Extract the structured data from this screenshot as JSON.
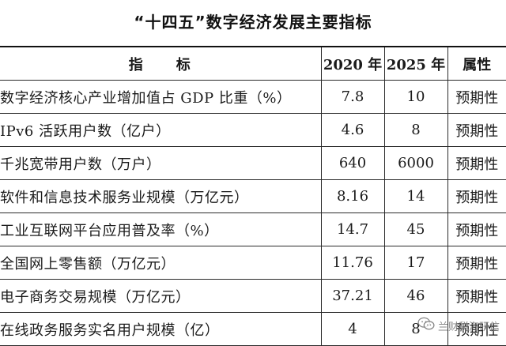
{
  "title": "“十四五”数字经济发展主要指标",
  "table": {
    "headers": {
      "indicator": "指　　标",
      "y2020": "2020 年",
      "y2025": "2025 年",
      "attribute": "属性"
    },
    "rows": [
      {
        "indicator": "数字经济核心产业增加值占 GDP 比重（%）",
        "y2020": "7.8",
        "y2025": "10",
        "attribute": "预期性"
      },
      {
        "indicator": "IPv6 活跃用户数（亿户）",
        "y2020": "4.6",
        "y2025": "8",
        "attribute": "预期性"
      },
      {
        "indicator": "千兆宽带用户数（万户）",
        "y2020": "640",
        "y2025": "6000",
        "attribute": "预期性"
      },
      {
        "indicator": "软件和信息技术服务业规模（万亿元）",
        "y2020": "8.16",
        "y2025": "14",
        "attribute": "预期性"
      },
      {
        "indicator": "工业互联网平台应用普及率（%）",
        "y2020": "14.7",
        "y2025": "45",
        "attribute": "预期性"
      },
      {
        "indicator": "全国网上零售额（万亿元）",
        "y2020": "11.76",
        "y2025": "17",
        "attribute": "预期性"
      },
      {
        "indicator": "电子商务交易规模（万亿元）",
        "y2020": "37.21",
        "y2025": "46",
        "attribute": "预期性"
      },
      {
        "indicator": "在线政务服务实名用户规模（亿）",
        "y2020": "4",
        "y2025": "8",
        "attribute": "预期性"
      }
    ]
  },
  "watermark": {
    "text": "兰财税海研信",
    "icon": "wechat-icon"
  }
}
